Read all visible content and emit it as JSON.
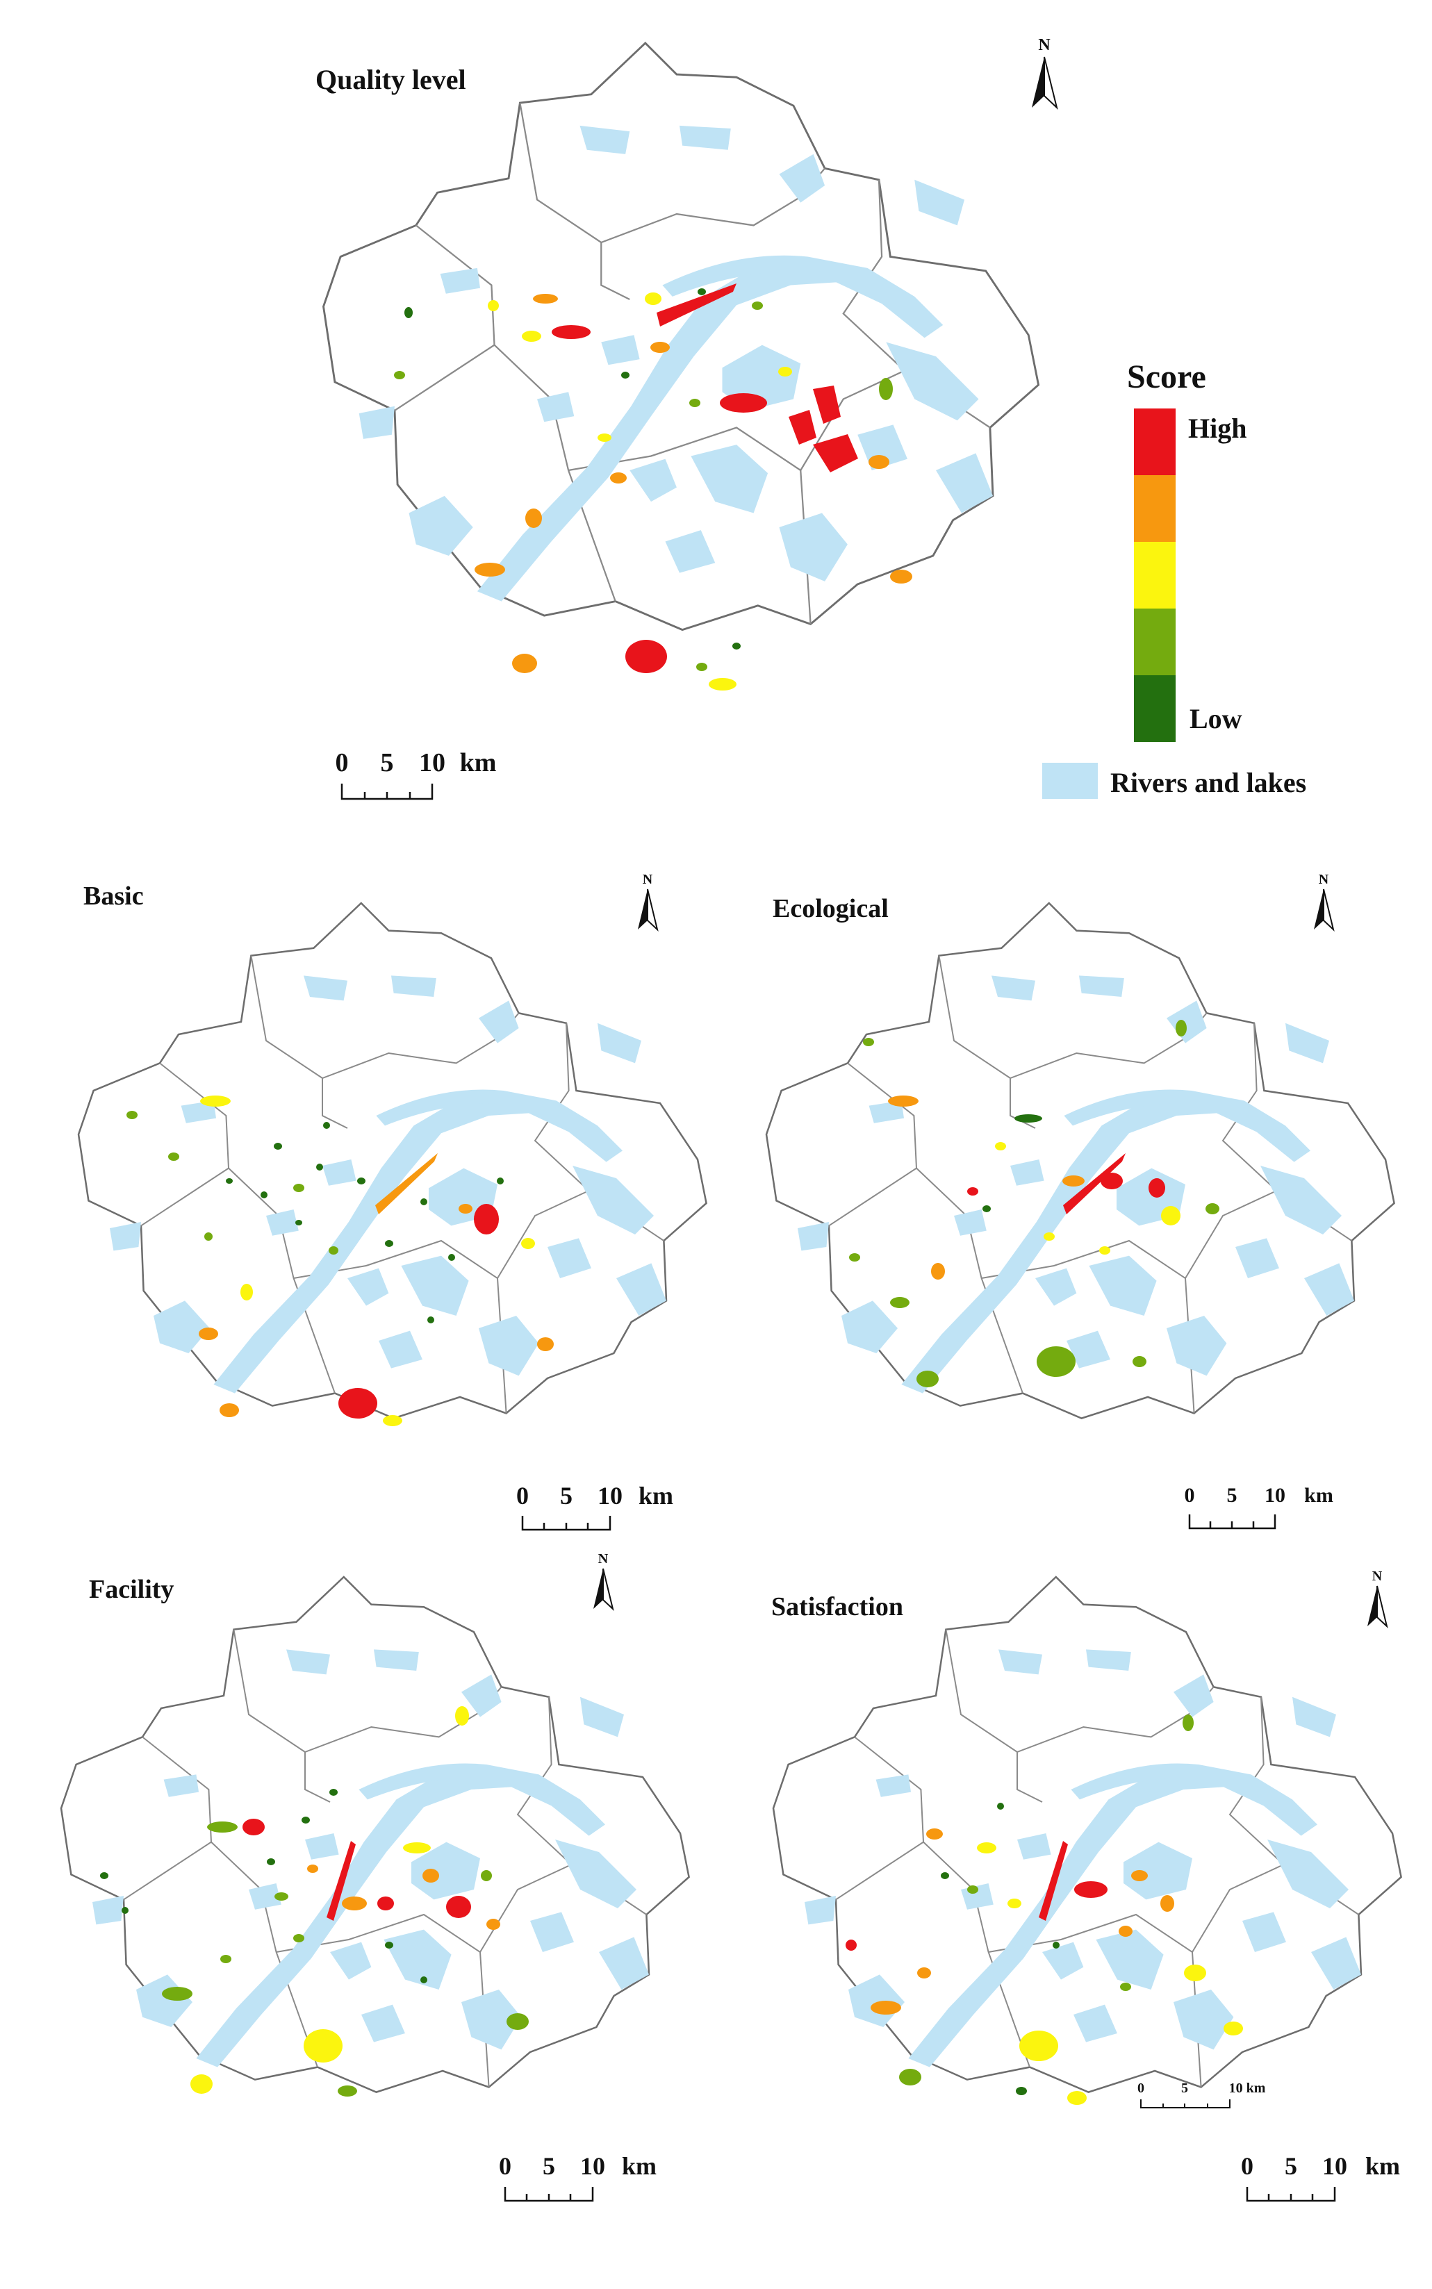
{
  "panels": [
    {
      "id": "quality",
      "title": "Quality level",
      "scale": {
        "labels": [
          "0",
          "5",
          "10",
          "km"
        ]
      }
    },
    {
      "id": "basic",
      "title": "Basic",
      "scale": {
        "labels": [
          "0",
          "5",
          "10",
          "km"
        ]
      }
    },
    {
      "id": "ecological",
      "title": "Ecological",
      "scale": {
        "labels": [
          "0",
          "5",
          "10",
          "km"
        ]
      }
    },
    {
      "id": "facility",
      "title": "Facility",
      "scale": {
        "labels": [
          "0",
          "5",
          "10",
          "km"
        ]
      }
    },
    {
      "id": "satisfaction",
      "title": "Satisfaction",
      "scale": {
        "labels": [
          "0",
          "5",
          "10",
          "km"
        ]
      },
      "inset_scale": {
        "labels": [
          "0",
          "5",
          "10 km"
        ]
      }
    }
  ],
  "north_label": "N",
  "legend": {
    "title": "Score",
    "high_label": "High",
    "low_label": "Low",
    "score_colors": [
      "#e8141b",
      "#f7980f",
      "#fbf50e",
      "#74ab0f",
      "#23700f"
    ],
    "water_label": "Rivers and lakes",
    "water_color": "#bfe3f5"
  }
}
